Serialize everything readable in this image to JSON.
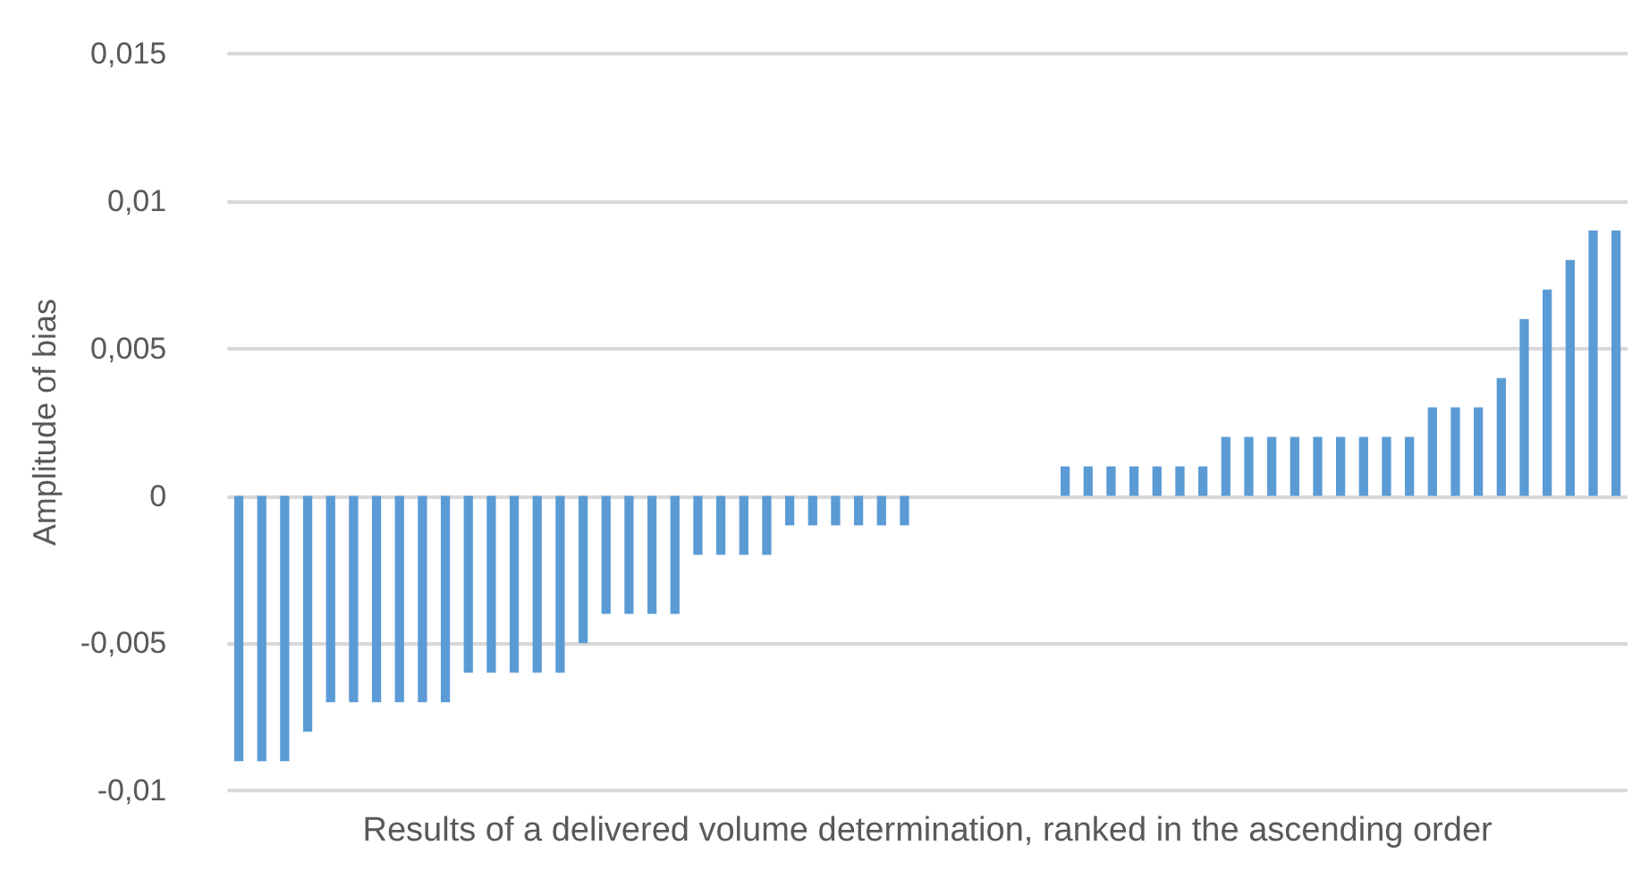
{
  "chart_data": {
    "type": "bar",
    "xlabel": "Results of a delivered volume determination, ranked in the ascending order",
    "ylabel": "Amplitude of bias",
    "categories": [
      null,
      null,
      null,
      null,
      null,
      null,
      null,
      null,
      null,
      null,
      null,
      null,
      null,
      null,
      null,
      null,
      null,
      null,
      null,
      null,
      null,
      null,
      null,
      null,
      null,
      null,
      null,
      null,
      null,
      null,
      null,
      null,
      null,
      null,
      null,
      null,
      null,
      null,
      null,
      null,
      null,
      null,
      null,
      null,
      null,
      null,
      null,
      null,
      null,
      null,
      null,
      null,
      null,
      null,
      null,
      null,
      null,
      null,
      null,
      null,
      null
    ],
    "values": [
      -0.009,
      -0.009,
      -0.009,
      -0.008,
      -0.007,
      -0.007,
      -0.007,
      -0.007,
      -0.007,
      -0.007,
      -0.006,
      -0.006,
      -0.006,
      -0.006,
      -0.006,
      -0.005,
      -0.004,
      -0.004,
      -0.004,
      -0.004,
      -0.002,
      -0.002,
      -0.002,
      -0.002,
      -0.001,
      -0.001,
      -0.001,
      -0.001,
      -0.001,
      -0.001,
      0,
      0,
      0,
      0,
      0,
      0,
      0.001,
      0.001,
      0.001,
      0.001,
      0.001,
      0.001,
      0.001,
      0.002,
      0.002,
      0.002,
      0.002,
      0.002,
      0.002,
      0.002,
      0.002,
      0.002,
      0.003,
      0.003,
      0.003,
      0.004,
      0.006,
      0.007,
      0.008,
      0.009,
      0.009
    ],
    "color": "#5b9bd5",
    "ylim": [
      -0.01,
      0.015
    ],
    "yticks": [
      {
        "value": -0.01,
        "label": "-0,01"
      },
      {
        "value": -0.005,
        "label": "-0,005"
      },
      {
        "value": 0,
        "label": "0"
      },
      {
        "value": 0.005,
        "label": "0,005"
      },
      {
        "value": 0.01,
        "label": "0,01"
      },
      {
        "value": 0.015,
        "label": "0,015"
      }
    ],
    "grid": "y"
  }
}
